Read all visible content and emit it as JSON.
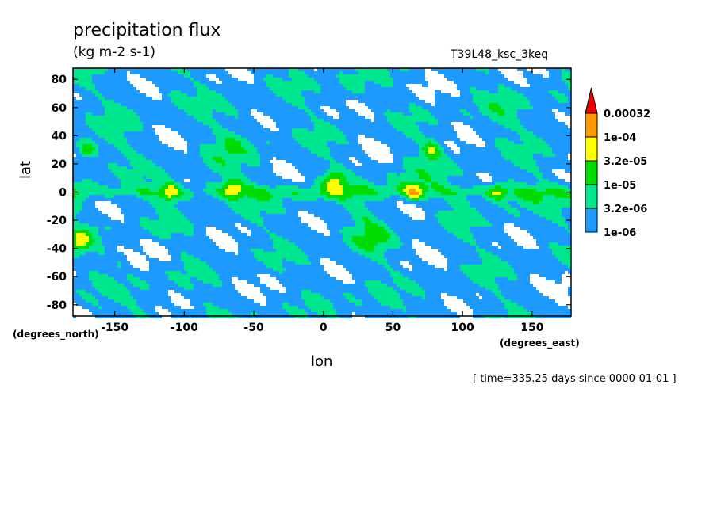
{
  "header": {
    "title": "precipitation flux",
    "units": "(kg m-2 s-1)",
    "run_id": "T39L48_ksc_3keq",
    "time_note": "[ time=335.25 days since 0000-01-01 ]"
  },
  "chart_data": {
    "type": "heatmap",
    "title": "precipitation flux",
    "subtitle": "(kg m-2 s-1)",
    "xlabel": "lon",
    "ylabel": "lat",
    "x_units": "(degrees_east)",
    "y_units": "(degrees_north)",
    "xlim": [
      -180,
      178
    ],
    "ylim": [
      -88,
      88
    ],
    "x_ticks": [
      "-150",
      "-100",
      "-50",
      "0",
      "50",
      "100",
      "150"
    ],
    "x_tick_values": [
      -150,
      -100,
      -50,
      0,
      50,
      100,
      150
    ],
    "y_ticks": [
      "80",
      "60",
      "40",
      "20",
      "0",
      "-20",
      "-40",
      "-60",
      "-80"
    ],
    "y_tick_values": [
      80,
      60,
      40,
      20,
      0,
      -20,
      -40,
      -60,
      -80
    ],
    "levels": [
      "1e-06",
      "3.2e-06",
      "1e-05",
      "3.2e-05",
      "1e-04",
      "0.00032"
    ],
    "level_colors": [
      "#ffffff",
      "#1e9bff",
      "#00e68c",
      "#00dc00",
      "#ffff00",
      "#ff9900",
      "#ee0000"
    ],
    "band_notes": "Colors map the field to log-spaced level bins; the strongest (red) cells lie along the equator near lon -110, -65, 10, 65 and 125, and at about (75E, 30N), (-175E, -35N) and (-170E, 30N).",
    "features": [
      {
        "lon": -110,
        "lat": 0,
        "level": "0.00032"
      },
      {
        "lon": -65,
        "lat": 3,
        "level": "0.00032"
      },
      {
        "lon": 8,
        "lat": 8,
        "level": "0.00032"
      },
      {
        "lon": 65,
        "lat": 0,
        "level": "0.00032"
      },
      {
        "lon": 125,
        "lat": 0,
        "level": "0.00032"
      },
      {
        "lon": 78,
        "lat": 30,
        "level": "0.00032"
      },
      {
        "lon": -175,
        "lat": -35,
        "level": "0.00032"
      },
      {
        "lon": -170,
        "lat": 30,
        "level": "0.00032"
      }
    ]
  }
}
